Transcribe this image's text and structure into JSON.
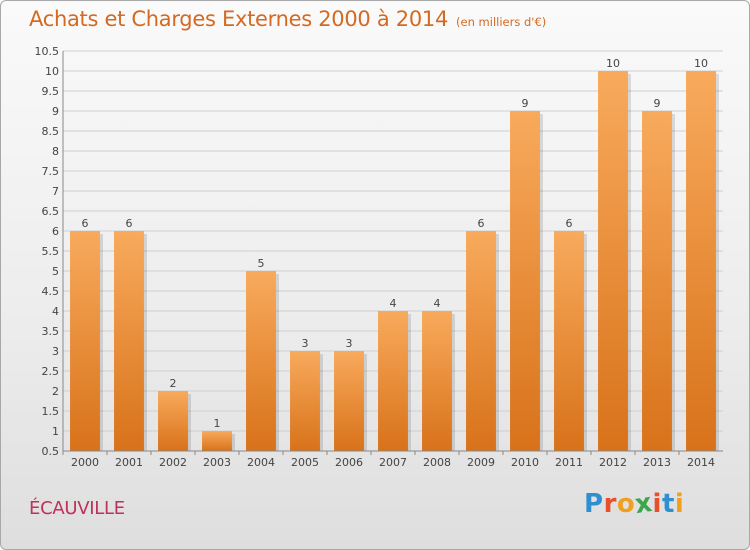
{
  "header": {
    "title": "Achats et Charges Externes 2000 à 2014",
    "unit": "(en milliers d'€)"
  },
  "footer": {
    "commune": "ÉCAUVILLE",
    "logo_letters": [
      "P",
      "r",
      "o",
      "x",
      "i",
      "t",
      "i"
    ]
  },
  "colors": {
    "title": "#d46a22",
    "commune": "#c0305a",
    "bar_light": "#f7a85a",
    "bar_dark": "#d9741c",
    "logo": [
      "#2f8fd0",
      "#e8502a",
      "#f0a020",
      "#3aa84a",
      "#e8502a",
      "#2f8fd0",
      "#f0a020"
    ]
  },
  "chart_data": {
    "type": "bar",
    "title": "Achats et Charges Externes 2000 à 2014",
    "subtitle": "(en milliers d'€)",
    "xlabel": "",
    "ylabel": "",
    "categories": [
      "2000",
      "2001",
      "2002",
      "2003",
      "2004",
      "2005",
      "2006",
      "2007",
      "2008",
      "2009",
      "2010",
      "2011",
      "2012",
      "2013",
      "2014"
    ],
    "values": [
      6,
      6,
      2,
      1,
      5,
      3,
      3,
      4,
      4,
      6,
      9,
      6,
      10,
      9,
      10
    ],
    "data_labels": [
      "6",
      "6",
      "2",
      "1",
      "5",
      "3",
      "3",
      "4",
      "4",
      "6",
      "9",
      "6",
      "10",
      "9",
      "10"
    ],
    "ylim": [
      0.5,
      10.5
    ],
    "yticks": [
      "0.5",
      "1",
      "1.5",
      "2",
      "2.5",
      "3",
      "3.5",
      "4",
      "4.5",
      "5",
      "5.5",
      "6",
      "6.5",
      "7",
      "7.5",
      "8",
      "8.5",
      "9",
      "9.5",
      "10",
      "10.5"
    ],
    "grid": true
  }
}
